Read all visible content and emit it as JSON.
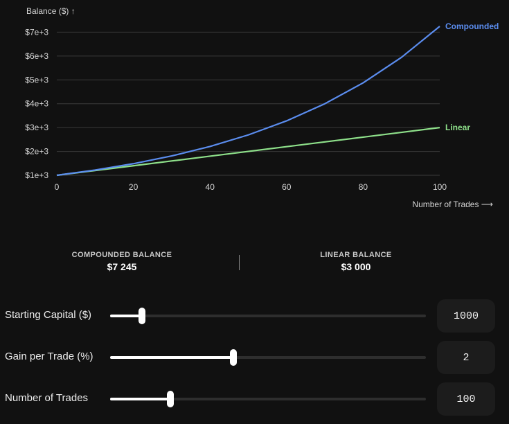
{
  "chart_data": {
    "type": "line",
    "ylabel": "Balance ($) ↑",
    "xlabel": "Number of Trades ⟶",
    "xlim": [
      0,
      100
    ],
    "ylim": [
      1000,
      7245
    ],
    "x_ticks": [
      0,
      20,
      40,
      60,
      80,
      100
    ],
    "x_tick_labels": [
      "0",
      "20",
      "40",
      "60",
      "80",
      "100"
    ],
    "y_ticks": [
      1000,
      2000,
      3000,
      4000,
      5000,
      6000,
      7000
    ],
    "y_tick_labels": [
      "$1e+3",
      "$2e+3",
      "$3e+3",
      "$4e+3",
      "$5e+3",
      "$6e+3",
      "$7e+3"
    ],
    "grid": true,
    "series": [
      {
        "name": "Compounded",
        "color": "#5b8def",
        "x": [
          0,
          10,
          20,
          30,
          40,
          50,
          60,
          70,
          80,
          90,
          100
        ],
        "values": [
          1000,
          1219,
          1486,
          1811,
          2208,
          2692,
          3281,
          4000,
          4875,
          5943,
          7245
        ]
      },
      {
        "name": "Linear",
        "color": "#8ee08a",
        "x": [
          0,
          10,
          20,
          30,
          40,
          50,
          60,
          70,
          80,
          90,
          100
        ],
        "values": [
          1000,
          1200,
          1400,
          1600,
          1800,
          2000,
          2200,
          2400,
          2600,
          2800,
          3000
        ]
      }
    ]
  },
  "stats": {
    "compounded_label": "COMPOUNDED BALANCE",
    "compounded_value": "$7 245",
    "linear_label": "LINEAR BALANCE",
    "linear_value": "$3 000"
  },
  "controls": [
    {
      "label": "Starting Capital ($)",
      "value": "1000",
      "fraction": 0.1
    },
    {
      "label": "Gain per Trade (%)",
      "value": "2",
      "fraction": 0.39
    },
    {
      "label": "Number of Trades",
      "value": "100",
      "fraction": 0.19
    }
  ]
}
